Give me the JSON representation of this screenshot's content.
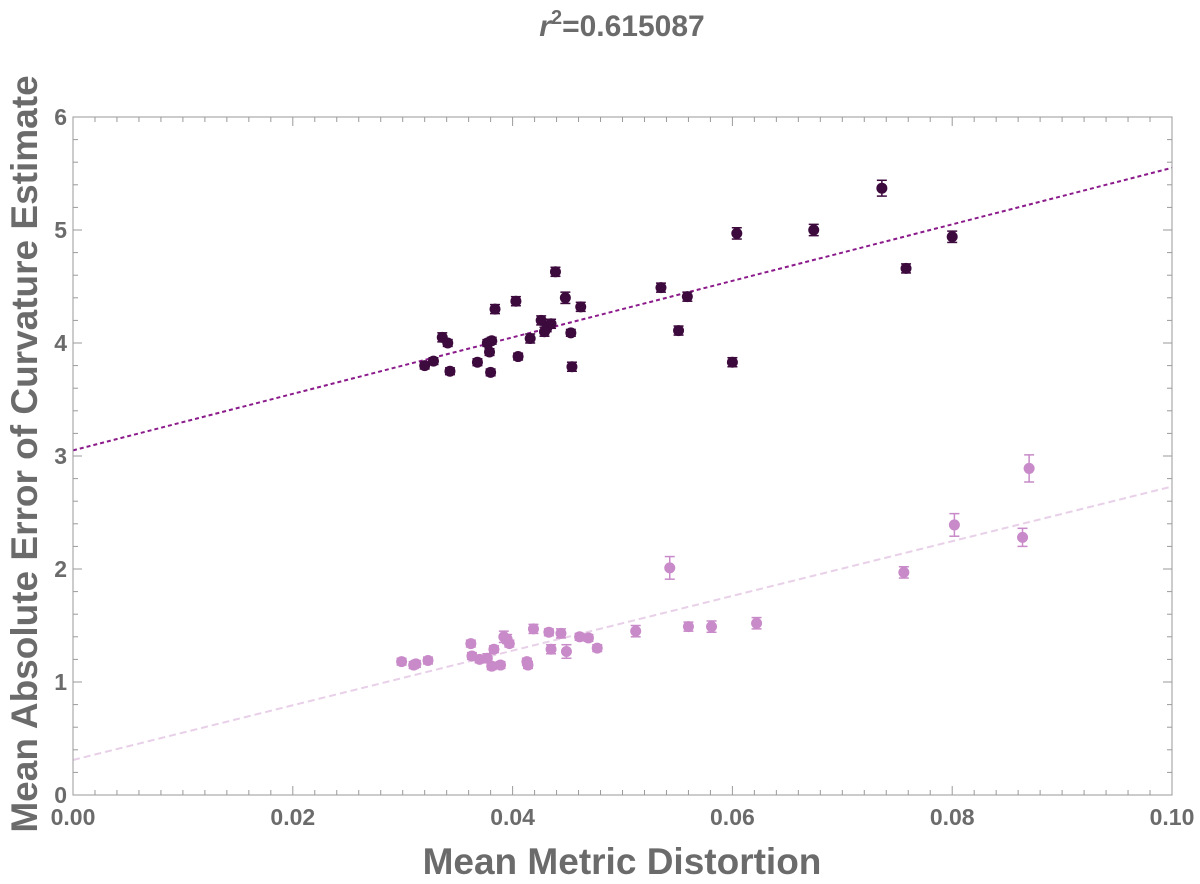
{
  "chart_data": {
    "type": "scatter",
    "title": {
      "symbol": "r",
      "exponent": "2",
      "value_text": "=0.615087"
    },
    "xlabel": "Mean Metric Distortion",
    "ylabel": "Mean Absolute Error of Curvature Estimate",
    "xlim": [
      0,
      0.1
    ],
    "ylim": [
      0,
      6
    ],
    "x_ticks": [
      {
        "value": 0.0,
        "label": "0.00"
      },
      {
        "value": 0.02,
        "label": "0.02"
      },
      {
        "value": 0.04,
        "label": "0.04"
      },
      {
        "value": 0.06,
        "label": "0.06"
      },
      {
        "value": 0.08,
        "label": "0.08"
      },
      {
        "value": 0.1,
        "label": "0.10"
      }
    ],
    "y_ticks": [
      {
        "value": 0,
        "label": "0"
      },
      {
        "value": 1,
        "label": "1"
      },
      {
        "value": 2,
        "label": "2"
      },
      {
        "value": 3,
        "label": "3"
      },
      {
        "value": 4,
        "label": "4"
      },
      {
        "value": 5,
        "label": "5"
      },
      {
        "value": 6,
        "label": "6"
      }
    ],
    "grid": false,
    "series": [
      {
        "name": "dark",
        "color": "#3d0a3d",
        "fit": {
          "intercept": 3.05,
          "slope": 25.0,
          "color": "#8b1a8b",
          "dash": "dotted"
        },
        "points": [
          [
            0.032,
            3.8,
            0.03
          ],
          [
            0.0328,
            3.84,
            0.03
          ],
          [
            0.0336,
            4.05,
            0.04
          ],
          [
            0.0341,
            4.0,
            0.03
          ],
          [
            0.0343,
            3.75,
            0.03
          ],
          [
            0.0368,
            3.83,
            0.03
          ],
          [
            0.0377,
            4.0,
            0.03
          ],
          [
            0.0379,
            3.92,
            0.03
          ],
          [
            0.038,
            3.74,
            0.03
          ],
          [
            0.0381,
            4.02,
            0.03
          ],
          [
            0.0384,
            4.3,
            0.04
          ],
          [
            0.0403,
            4.37,
            0.04
          ],
          [
            0.0405,
            3.88,
            0.03
          ],
          [
            0.0416,
            4.04,
            0.04
          ],
          [
            0.0426,
            4.2,
            0.04
          ],
          [
            0.0429,
            4.1,
            0.04
          ],
          [
            0.0431,
            4.13,
            0.03
          ],
          [
            0.0435,
            4.17,
            0.04
          ],
          [
            0.0439,
            4.63,
            0.04
          ],
          [
            0.0448,
            4.4,
            0.05
          ],
          [
            0.0453,
            4.09,
            0.03
          ],
          [
            0.0454,
            3.79,
            0.04
          ],
          [
            0.0462,
            4.32,
            0.04
          ],
          [
            0.0535,
            4.49,
            0.04
          ],
          [
            0.0551,
            4.11,
            0.04
          ],
          [
            0.0559,
            4.41,
            0.04
          ],
          [
            0.06,
            3.83,
            0.04
          ],
          [
            0.0604,
            4.97,
            0.05
          ],
          [
            0.0674,
            5.0,
            0.05
          ],
          [
            0.0736,
            5.37,
            0.07
          ],
          [
            0.0758,
            4.66,
            0.04
          ],
          [
            0.08,
            4.94,
            0.05
          ]
        ]
      },
      {
        "name": "light",
        "color": "#c88ac8",
        "fit": {
          "intercept": 0.31,
          "slope": 24.2,
          "color": "#e8d0e8",
          "dash": "dashed"
        },
        "points": [
          [
            0.0299,
            1.18,
            0.03
          ],
          [
            0.031,
            1.15,
            0.03
          ],
          [
            0.0312,
            1.16,
            0.03
          ],
          [
            0.0323,
            1.19,
            0.03
          ],
          [
            0.0362,
            1.34,
            0.03
          ],
          [
            0.0363,
            1.23,
            0.03
          ],
          [
            0.037,
            1.2,
            0.03
          ],
          [
            0.0377,
            1.21,
            0.04
          ],
          [
            0.0381,
            1.14,
            0.03
          ],
          [
            0.0383,
            1.29,
            0.03
          ],
          [
            0.0389,
            1.15,
            0.03
          ],
          [
            0.0392,
            1.4,
            0.05
          ],
          [
            0.0395,
            1.38,
            0.04
          ],
          [
            0.0397,
            1.34,
            0.03
          ],
          [
            0.0413,
            1.18,
            0.03
          ],
          [
            0.0414,
            1.15,
            0.03
          ],
          [
            0.0419,
            1.47,
            0.04
          ],
          [
            0.0433,
            1.44,
            0.03
          ],
          [
            0.0435,
            1.29,
            0.04
          ],
          [
            0.0444,
            1.43,
            0.04
          ],
          [
            0.0449,
            1.27,
            0.06
          ],
          [
            0.0461,
            1.4,
            0.03
          ],
          [
            0.0469,
            1.39,
            0.03
          ],
          [
            0.0477,
            1.3,
            0.03
          ],
          [
            0.0512,
            1.45,
            0.05
          ],
          [
            0.0543,
            2.01,
            0.1
          ],
          [
            0.056,
            1.49,
            0.04
          ],
          [
            0.0581,
            1.49,
            0.05
          ],
          [
            0.0622,
            1.52,
            0.05
          ],
          [
            0.0756,
            1.97,
            0.05
          ],
          [
            0.0802,
            2.39,
            0.1
          ],
          [
            0.0864,
            2.28,
            0.08
          ],
          [
            0.087,
            2.89,
            0.12
          ]
        ]
      }
    ]
  }
}
